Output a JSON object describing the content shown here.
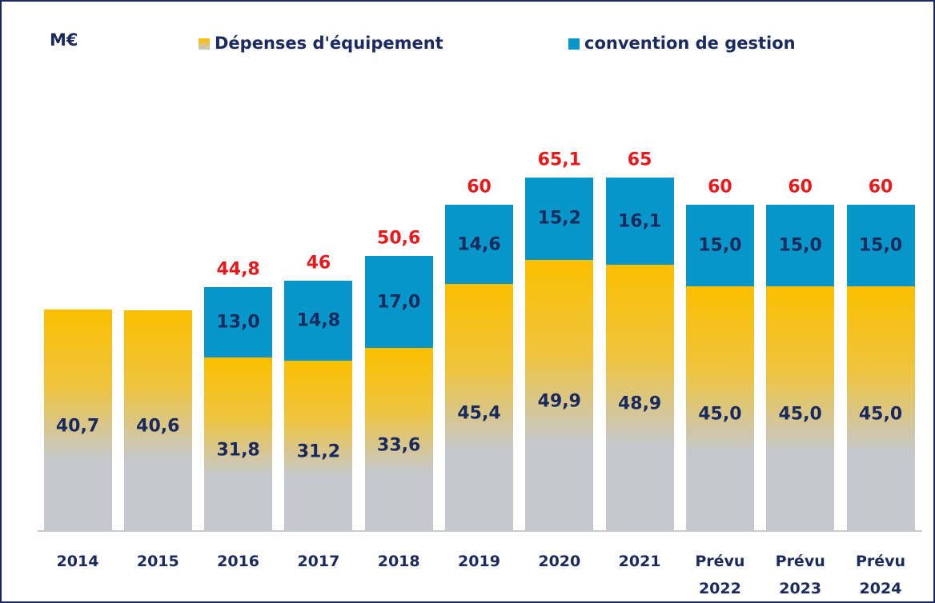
{
  "chart_data": {
    "type": "stacked-bar",
    "unit": "M€",
    "categories": [
      "2014",
      "2015",
      "2016",
      "2017",
      "2018",
      "2019",
      "2020",
      "2021",
      "Prévu 2022",
      "Prévu 2023",
      "Prévu 2024"
    ],
    "series": [
      {
        "name": "Dépenses d'équipement",
        "color": "#fbbf00",
        "values": [
          40.7,
          40.6,
          31.8,
          31.2,
          33.6,
          45.4,
          49.9,
          48.9,
          45.0,
          45.0,
          45.0
        ],
        "value_labels": [
          "40,7",
          "40,6",
          "31,8",
          "31,2",
          "33,6",
          "45,4",
          "49,9",
          "48,9",
          "45,0",
          "45,0",
          "45,0"
        ]
      },
      {
        "name": "convention de gestion",
        "color": "#0696c9",
        "values": [
          null,
          null,
          13.0,
          14.8,
          17.0,
          14.6,
          15.2,
          16.1,
          15.0,
          15.0,
          15.0
        ],
        "value_labels": [
          null,
          null,
          "13,0",
          "14,8",
          "17,0",
          "14,6",
          "15,2",
          "16,1",
          "15,0",
          "15,0",
          "15,0"
        ]
      }
    ],
    "totals": {
      "values": [
        null,
        null,
        44.8,
        46,
        50.6,
        60,
        65.1,
        65,
        60,
        60,
        60
      ],
      "value_labels": [
        null,
        null,
        "44,8",
        "46",
        "50,6",
        "60",
        "65,1",
        "65",
        "60",
        "60",
        "60"
      ],
      "color": "#e8191a"
    }
  }
}
